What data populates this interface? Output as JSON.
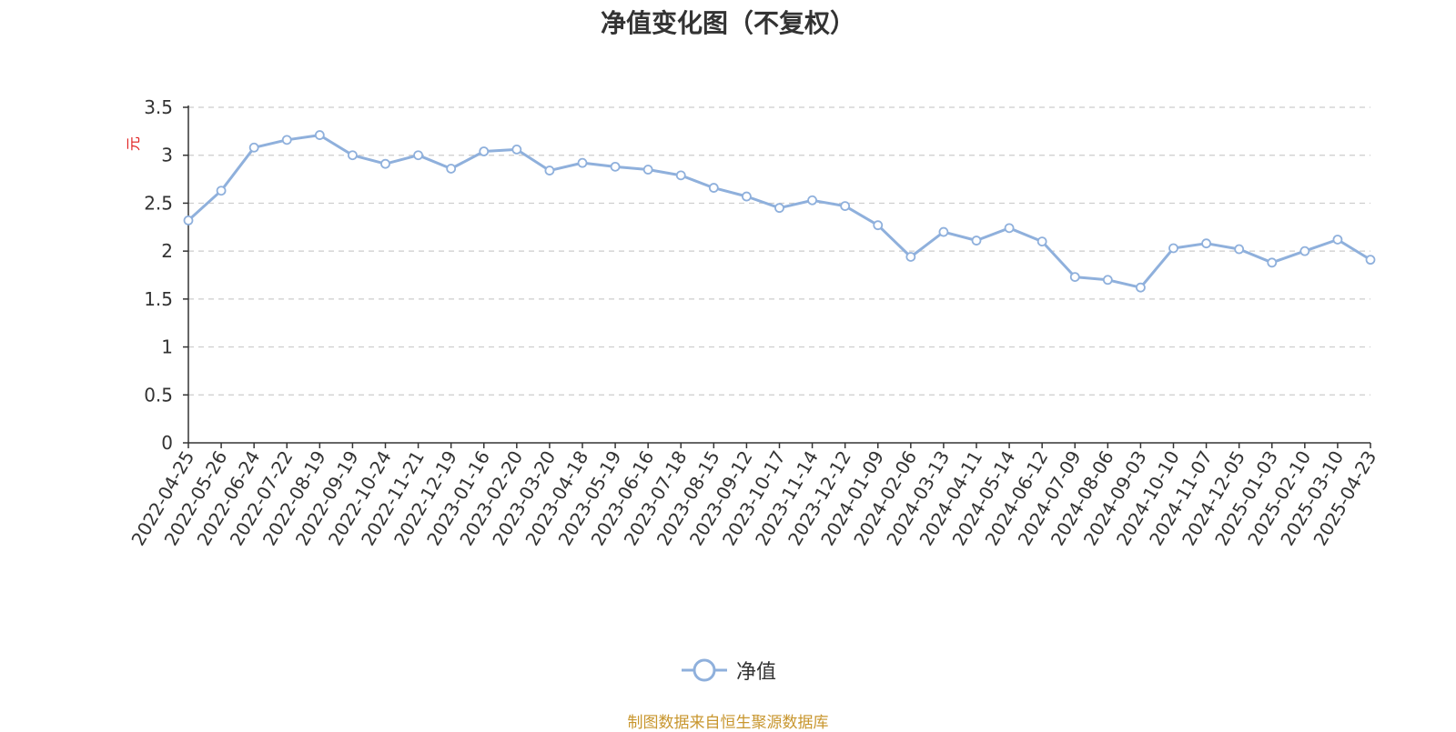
{
  "chart_data": {
    "type": "line",
    "title": "净值变化图（不复权）",
    "xlabel": "",
    "ylabel": "元",
    "ylim": [
      0,
      3.5
    ],
    "yticks": [
      "0",
      "0.5",
      "1",
      "1.5",
      "2",
      "2.5",
      "3",
      "3.5"
    ],
    "grid": "horizontal dashed",
    "legend_position": "bottom-center",
    "categories": [
      "2022-04-25",
      "2022-05-26",
      "2022-06-24",
      "2022-07-22",
      "2022-08-19",
      "2022-09-19",
      "2022-10-24",
      "2022-11-21",
      "2022-12-19",
      "2023-01-16",
      "2023-02-20",
      "2023-03-20",
      "2023-04-18",
      "2023-05-19",
      "2023-06-16",
      "2023-07-18",
      "2023-08-15",
      "2023-09-12",
      "2023-10-17",
      "2023-11-14",
      "2023-12-12",
      "2024-01-09",
      "2024-02-06",
      "2024-03-13",
      "2024-04-11",
      "2024-05-14",
      "2024-06-12",
      "2024-07-09",
      "2024-08-06",
      "2024-09-03",
      "2024-10-10",
      "2024-11-07",
      "2024-12-05",
      "2025-01-03",
      "2025-02-10",
      "2025-03-10",
      "2025-04-23"
    ],
    "series": [
      {
        "name": "净值",
        "color": "#8fb0dc",
        "values": [
          2.32,
          2.63,
          3.08,
          3.16,
          3.21,
          3.0,
          2.91,
          3.0,
          2.86,
          3.04,
          3.06,
          2.84,
          2.92,
          2.88,
          2.85,
          2.79,
          2.66,
          2.57,
          2.45,
          2.53,
          2.47,
          2.27,
          1.94,
          2.2,
          2.11,
          2.24,
          2.1,
          1.73,
          1.7,
          1.62,
          2.03,
          2.08,
          2.02,
          1.88,
          2.0,
          2.12,
          1.91
        ]
      }
    ]
  },
  "legend": {
    "label": "净值"
  },
  "source_note": "制图数据来自恒生聚源数据库",
  "colors": {
    "line": "#8fb0dc",
    "grid": "#cccccc",
    "axis": "#333333",
    "ylabel": "#e02020",
    "source": "#c8962e"
  }
}
